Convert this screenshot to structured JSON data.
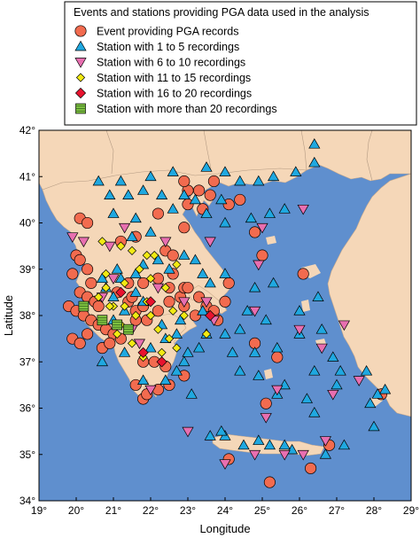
{
  "chart_data": {
    "type": "scatter",
    "title": "",
    "xlabel": "Longitude",
    "ylabel": "Latitude",
    "xlim": [
      19,
      29
    ],
    "ylim": [
      34,
      42
    ],
    "x_ticks": [
      {
        "value": 19,
        "label": "19°"
      },
      {
        "value": 20,
        "label": "20°"
      },
      {
        "value": 21,
        "label": "21°"
      },
      {
        "value": 22,
        "label": "22°"
      },
      {
        "value": 23,
        "label": "23°"
      },
      {
        "value": 24,
        "label": "24°"
      },
      {
        "value": 25,
        "label": "25°"
      },
      {
        "value": 26,
        "label": "26°"
      },
      {
        "value": 27,
        "label": "27°"
      },
      {
        "value": 28,
        "label": "28°"
      },
      {
        "value": 29,
        "label": "29°"
      }
    ],
    "y_ticks": [
      {
        "value": 34,
        "label": "34°"
      },
      {
        "value": 35,
        "label": "35°"
      },
      {
        "value": 36,
        "label": "36°"
      },
      {
        "value": 37,
        "label": "37°"
      },
      {
        "value": 38,
        "label": "38°"
      },
      {
        "value": 39,
        "label": "39°"
      },
      {
        "value": 40,
        "label": "40°"
      },
      {
        "value": 41,
        "label": "41°"
      },
      {
        "value": 42,
        "label": "42°"
      }
    ],
    "grid": false,
    "legend": {
      "placement": "top-right",
      "title": "Events and stations providing PGA data used in the analysis",
      "entries": [
        {
          "label": "Event providing PGA records",
          "marker": "circle",
          "color": "#f26b4f"
        },
        {
          "label": "Station with 1 to 5 recordings",
          "marker": "triangle-up",
          "color": "#1fa8e0"
        },
        {
          "label": "Station with 6 to 10 recordings",
          "marker": "triangle-down",
          "color": "#e86fb0"
        },
        {
          "label": "Station with 11 to 15 recordings",
          "marker": "diamond-small",
          "color": "#f2ea12"
        },
        {
          "label": "Station with 16 to 20 recordings",
          "marker": "diamond",
          "color": "#e8132f"
        },
        {
          "label": "Station with more than 20 recordings",
          "marker": "square",
          "color": "#7fc241"
        }
      ]
    },
    "colors": {
      "sea": "#5f8fce",
      "land": "#f5d7b8",
      "border": "#b39a82"
    },
    "series": [
      {
        "name": "Event providing PGA records",
        "marker": "circle",
        "points": [
          [
            20.1,
            40.1
          ],
          [
            20.3,
            40.0
          ],
          [
            20.0,
            39.3
          ],
          [
            20.1,
            39.2
          ],
          [
            20.3,
            39.0
          ],
          [
            19.9,
            38.9
          ],
          [
            20.4,
            38.7
          ],
          [
            20.1,
            38.5
          ],
          [
            20.3,
            38.4
          ],
          [
            20.5,
            38.3
          ],
          [
            20.6,
            38.2
          ],
          [
            19.8,
            38.2
          ],
          [
            20.0,
            38.1
          ],
          [
            20.2,
            38.0
          ],
          [
            20.4,
            37.9
          ],
          [
            20.6,
            37.8
          ],
          [
            20.8,
            37.7
          ],
          [
            21.0,
            37.6
          ],
          [
            21.2,
            37.5
          ],
          [
            20.7,
            37.3
          ],
          [
            20.9,
            37.4
          ],
          [
            20.3,
            37.6
          ],
          [
            19.9,
            37.5
          ],
          [
            20.1,
            37.4
          ],
          [
            21.6,
            38.1
          ],
          [
            21.8,
            38.2
          ],
          [
            21.6,
            37.9
          ],
          [
            21.9,
            37.9
          ],
          [
            22.2,
            38.1
          ],
          [
            22.5,
            38.3
          ],
          [
            22.8,
            38.4
          ],
          [
            22.5,
            38.6
          ],
          [
            21.4,
            38.3
          ],
          [
            21.5,
            38.4
          ],
          [
            21.8,
            38.7
          ],
          [
            22.2,
            38.8
          ],
          [
            22.6,
            38.9
          ],
          [
            22.9,
            38.6
          ],
          [
            22.9,
            38.2
          ],
          [
            23.3,
            38.4
          ],
          [
            23.5,
            38.2
          ],
          [
            23.2,
            38.0
          ],
          [
            23.7,
            38.1
          ],
          [
            23.8,
            37.9
          ],
          [
            21.8,
            37.0
          ],
          [
            22.1,
            37.0
          ],
          [
            22.4,
            36.9
          ],
          [
            21.6,
            36.5
          ],
          [
            21.8,
            36.2
          ],
          [
            22.2,
            36.4
          ],
          [
            22.5,
            36.5
          ],
          [
            22.9,
            36.7
          ],
          [
            21.9,
            36.3
          ],
          [
            23.0,
            40.7
          ],
          [
            23.3,
            40.7
          ],
          [
            22.9,
            40.9
          ],
          [
            23.7,
            40.9
          ],
          [
            23.0,
            40.4
          ],
          [
            23.4,
            40.3
          ],
          [
            22.2,
            40.2
          ],
          [
            23.6,
            40.6
          ],
          [
            24.1,
            40.4
          ],
          [
            24.4,
            40.5
          ],
          [
            22.9,
            39.9
          ],
          [
            22.4,
            39.4
          ],
          [
            22.6,
            39.3
          ],
          [
            21.2,
            39.6
          ],
          [
            21.6,
            39.7
          ],
          [
            24.8,
            39.8
          ],
          [
            25.0,
            39.3
          ],
          [
            24.1,
            38.7
          ],
          [
            24.0,
            38.3
          ],
          [
            24.8,
            37.4
          ],
          [
            25.4,
            37.1
          ],
          [
            25.1,
            36.1
          ],
          [
            26.1,
            38.9
          ],
          [
            26.3,
            34.7
          ],
          [
            25.2,
            34.4
          ],
          [
            24.1,
            34.9
          ],
          [
            26.8,
            35.2
          ],
          [
            28.2,
            36.3
          ],
          [
            21.4,
            38.7
          ],
          [
            21.1,
            38.5
          ],
          [
            23.0,
            38.6
          ]
        ]
      },
      {
        "name": "Station with 1 to 5 recordings",
        "marker": "triangle-up",
        "points": [
          [
            26.4,
            41.7
          ],
          [
            26.4,
            41.3
          ],
          [
            25.9,
            41.1
          ],
          [
            25.3,
            41.0
          ],
          [
            24.9,
            40.9
          ],
          [
            24.4,
            40.9
          ],
          [
            24.0,
            41.1
          ],
          [
            23.5,
            41.2
          ],
          [
            22.6,
            41.1
          ],
          [
            22.0,
            41.0
          ],
          [
            21.2,
            40.9
          ],
          [
            20.6,
            40.9
          ],
          [
            20.9,
            40.6
          ],
          [
            21.4,
            40.6
          ],
          [
            21.8,
            40.7
          ],
          [
            22.3,
            40.6
          ],
          [
            22.6,
            40.3
          ],
          [
            22.9,
            40.6
          ],
          [
            23.2,
            40.5
          ],
          [
            23.9,
            40.5
          ],
          [
            23.5,
            40.2
          ],
          [
            24.0,
            40.0
          ],
          [
            24.7,
            40.1
          ],
          [
            25.2,
            40.2
          ],
          [
            25.6,
            40.3
          ],
          [
            21.6,
            40.1
          ],
          [
            21.0,
            40.2
          ],
          [
            21.5,
            39.7
          ],
          [
            22.0,
            39.8
          ],
          [
            22.2,
            39.2
          ],
          [
            22.9,
            39.3
          ],
          [
            23.2,
            39.2
          ],
          [
            21.8,
            39.1
          ],
          [
            22.5,
            39.0
          ],
          [
            23.4,
            38.9
          ],
          [
            23.6,
            38.7
          ],
          [
            24.0,
            38.9
          ],
          [
            24.8,
            38.6
          ],
          [
            25.3,
            38.7
          ],
          [
            26.5,
            38.4
          ],
          [
            26.0,
            38.1
          ],
          [
            25.1,
            37.9
          ],
          [
            24.4,
            37.7
          ],
          [
            24.0,
            37.6
          ],
          [
            24.8,
            37.2
          ],
          [
            25.4,
            37.3
          ],
          [
            26.0,
            37.6
          ],
          [
            26.6,
            37.7
          ],
          [
            26.9,
            37.1
          ],
          [
            26.4,
            36.8
          ],
          [
            27.1,
            36.8
          ],
          [
            27.8,
            36.8
          ],
          [
            28.1,
            36.3
          ],
          [
            27.9,
            36.1
          ],
          [
            28.3,
            36.4
          ],
          [
            28.0,
            35.6
          ],
          [
            27.2,
            35.2
          ],
          [
            26.7,
            35.0
          ],
          [
            25.8,
            35.1
          ],
          [
            25.6,
            35.2
          ],
          [
            25.2,
            35.2
          ],
          [
            24.9,
            35.3
          ],
          [
            24.5,
            35.2
          ],
          [
            24.0,
            35.4
          ],
          [
            23.6,
            35.4
          ],
          [
            23.9,
            35.5
          ],
          [
            26.4,
            35.9
          ],
          [
            26.2,
            36.2
          ],
          [
            25.4,
            36.3
          ],
          [
            24.9,
            36.7
          ],
          [
            25.6,
            36.5
          ],
          [
            24.4,
            36.8
          ],
          [
            23.0,
            37.2
          ],
          [
            22.9,
            37.0
          ],
          [
            22.4,
            36.6
          ],
          [
            23.1,
            36.3
          ],
          [
            22.7,
            36.8
          ],
          [
            21.8,
            36.6
          ],
          [
            22.0,
            37.3
          ],
          [
            22.4,
            37.5
          ],
          [
            22.7,
            37.6
          ],
          [
            23.3,
            37.3
          ],
          [
            23.5,
            37.6
          ],
          [
            22.3,
            37.8
          ],
          [
            21.3,
            37.2
          ],
          [
            20.7,
            37.0
          ],
          [
            21.0,
            37.9
          ],
          [
            21.3,
            38.1
          ],
          [
            21.0,
            38.4
          ],
          [
            21.6,
            38.5
          ],
          [
            20.8,
            38.6
          ],
          [
            20.7,
            38.8
          ],
          [
            21.2,
            38.8
          ],
          [
            21.1,
            39.0
          ],
          [
            21.6,
            38.9
          ],
          [
            21.8,
            38.3
          ],
          [
            22.8,
            37.9
          ],
          [
            23.4,
            38.1
          ],
          [
            24.6,
            38.1
          ],
          [
            24.2,
            37.2
          ],
          [
            27.0,
            36.5
          ]
        ]
      },
      {
        "name": "Station with 6 to 10 recordings",
        "marker": "triangle-down",
        "points": [
          [
            19.9,
            39.7
          ],
          [
            20.2,
            39.6
          ],
          [
            21.3,
            39.9
          ],
          [
            22.4,
            39.6
          ],
          [
            23.6,
            39.6
          ],
          [
            25.0,
            39.9
          ],
          [
            26.1,
            40.3
          ],
          [
            24.9,
            39.1
          ],
          [
            24.8,
            38.1
          ],
          [
            26.0,
            37.7
          ],
          [
            27.2,
            37.8
          ],
          [
            26.6,
            37.3
          ],
          [
            26.9,
            36.3
          ],
          [
            27.6,
            36.6
          ],
          [
            25.1,
            35.8
          ],
          [
            24.0,
            34.8
          ],
          [
            24.8,
            35.0
          ],
          [
            25.6,
            35.0
          ],
          [
            26.1,
            35.0
          ],
          [
            26.7,
            35.3
          ],
          [
            21.0,
            38.8
          ],
          [
            22.9,
            38.3
          ],
          [
            23.5,
            38.3
          ],
          [
            23.7,
            37.9
          ],
          [
            21.7,
            37.4
          ],
          [
            22.0,
            36.4
          ],
          [
            20.7,
            38.4
          ],
          [
            21.5,
            37.7
          ],
          [
            22.2,
            38.6
          ],
          [
            25.4,
            36.4
          ],
          [
            23.0,
            35.5
          ],
          [
            20.9,
            39.5
          ]
        ]
      },
      {
        "name": "Station with 11 to 15 recordings",
        "marker": "diamond-small",
        "points": [
          [
            20.7,
            39.6
          ],
          [
            21.2,
            39.5
          ],
          [
            21.5,
            39.4
          ],
          [
            21.9,
            39.3
          ],
          [
            22.1,
            39.3
          ],
          [
            21.7,
            39.0
          ],
          [
            22.0,
            38.8
          ],
          [
            21.3,
            38.7
          ],
          [
            20.8,
            38.6
          ],
          [
            20.6,
            38.4
          ],
          [
            21.0,
            38.2
          ],
          [
            21.3,
            38.2
          ],
          [
            21.6,
            38.0
          ],
          [
            22.0,
            38.0
          ],
          [
            22.6,
            38.1
          ],
          [
            22.2,
            37.7
          ],
          [
            22.5,
            37.5
          ],
          [
            22.7,
            37.3
          ],
          [
            22.3,
            37.2
          ],
          [
            21.8,
            37.1
          ],
          [
            21.5,
            37.4
          ],
          [
            21.1,
            37.6
          ],
          [
            21.2,
            37.8
          ],
          [
            22.9,
            38.0
          ],
          [
            23.5,
            37.6
          ],
          [
            20.9,
            38.2
          ],
          [
            21.9,
            38.3
          ],
          [
            22.4,
            38.6
          ],
          [
            22.7,
            39.1
          ],
          [
            20.8,
            38.9
          ]
        ]
      },
      {
        "name": "Station with 16 to 20 recordings",
        "marker": "diamond",
        "points": [
          [
            22.0,
            38.3
          ],
          [
            21.8,
            37.2
          ],
          [
            23.6,
            38.0
          ],
          [
            22.3,
            37.0
          ],
          [
            21.2,
            38.5
          ]
        ]
      },
      {
        "name": "Station with more than 20 recordings",
        "marker": "square",
        "points": [
          [
            20.2,
            38.2
          ],
          [
            20.7,
            37.9
          ],
          [
            21.1,
            37.8
          ],
          [
            21.4,
            37.7
          ]
        ]
      }
    ]
  }
}
